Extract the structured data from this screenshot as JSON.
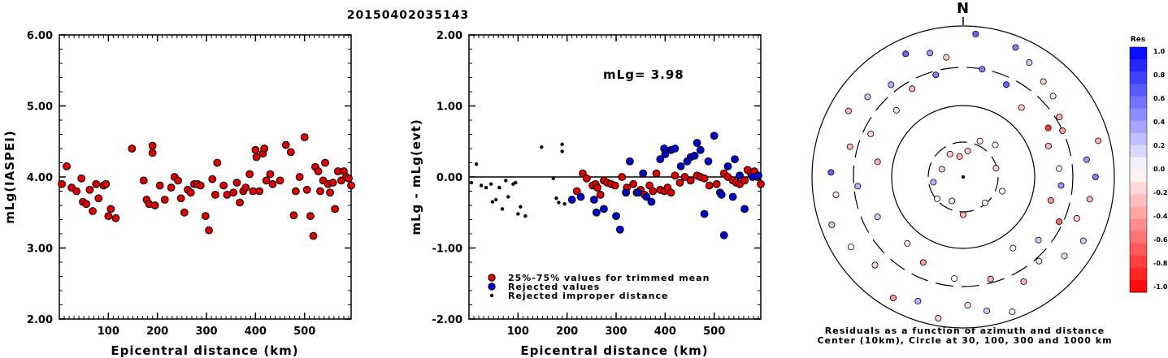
{
  "chart_data": [
    {
      "type": "scatter",
      "title": "20150402035143",
      "xlabel": "Epicentral distance (km)",
      "ylabel": "mLg(IASPEI)",
      "xlim": [
        0,
        595
      ],
      "ylim": [
        2.0,
        6.0
      ],
      "xticks": [
        "100",
        "200",
        "300",
        "400",
        "500"
      ],
      "yticks": [
        "2.00",
        "3.00",
        "4.00",
        "5.00",
        "6.00"
      ],
      "grid": false,
      "series": [
        {
          "color": "#dd0000",
          "points": [
            [
              5,
              3.9
            ],
            [
              15,
              4.15
            ],
            [
              25,
              3.85
            ],
            [
              35,
              3.8
            ],
            [
              45,
              3.98
            ],
            [
              48,
              3.65
            ],
            [
              55,
              3.62
            ],
            [
              62,
              3.82
            ],
            [
              68,
              3.52
            ],
            [
              75,
              3.9
            ],
            [
              80,
              3.7
            ],
            [
              90,
              3.88
            ],
            [
              95,
              3.9
            ],
            [
              100,
              3.45
            ],
            [
              105,
              3.55
            ],
            [
              115,
              3.42
            ],
            [
              148,
              4.4
            ],
            [
              172,
              3.95
            ],
            [
              178,
              3.68
            ],
            [
              183,
              3.62
            ],
            [
              190,
              4.44
            ],
            [
              190,
              4.34
            ],
            [
              195,
              3.6
            ],
            [
              205,
              3.88
            ],
            [
              215,
              3.68
            ],
            [
              228,
              3.85
            ],
            [
              235,
              4.0
            ],
            [
              242,
              3.95
            ],
            [
              248,
              3.7
            ],
            [
              255,
              3.5
            ],
            [
              262,
              3.82
            ],
            [
              268,
              3.78
            ],
            [
              275,
              3.9
            ],
            [
              282,
              3.9
            ],
            [
              288,
              3.88
            ],
            [
              298,
              3.45
            ],
            [
              305,
              3.25
            ],
            [
              312,
              3.97
            ],
            [
              318,
              3.75
            ],
            [
              322,
              4.2
            ],
            [
              335,
              3.88
            ],
            [
              342,
              3.75
            ],
            [
              355,
              3.78
            ],
            [
              362,
              3.92
            ],
            [
              368,
              3.64
            ],
            [
              375,
              3.8
            ],
            [
              380,
              3.85
            ],
            [
              388,
              4.04
            ],
            [
              395,
              3.8
            ],
            [
              400,
              4.38
            ],
            [
              402,
              4.28
            ],
            [
              408,
              3.8
            ],
            [
              415,
              4.33
            ],
            [
              418,
              4.4
            ],
            [
              422,
              3.95
            ],
            [
              430,
              4.04
            ],
            [
              435,
              3.9
            ],
            [
              450,
              3.95
            ],
            [
              462,
              4.45
            ],
            [
              472,
              4.35
            ],
            [
              478,
              3.46
            ],
            [
              482,
              3.8
            ],
            [
              490,
              4.0
            ],
            [
              500,
              4.56
            ],
            [
              505,
              3.82
            ],
            [
              512,
              3.45
            ],
            [
              518,
              3.17
            ],
            [
              522,
              4.14
            ],
            [
              528,
              4.08
            ],
            [
              532,
              3.8
            ],
            [
              538,
              3.95
            ],
            [
              542,
              4.2
            ],
            [
              548,
              3.9
            ],
            [
              552,
              3.78
            ],
            [
              558,
              3.92
            ],
            [
              562,
              3.55
            ],
            [
              568,
              4.08
            ],
            [
              575,
              3.95
            ],
            [
              580,
              4.08
            ],
            [
              585,
              4.0
            ],
            [
              590,
              3.98
            ],
            [
              595,
              3.88
            ]
          ]
        }
      ]
    },
    {
      "type": "scatter",
      "xlabel": "Epicentral distance (km)",
      "ylabel": "mLg - mLg(evt)",
      "annotation": "mLg= 3.98",
      "xlim": [
        0,
        595
      ],
      "ylim": [
        -2.0,
        2.0
      ],
      "xticks": [
        "100",
        "200",
        "300",
        "400",
        "500"
      ],
      "yticks": [
        "-2.00",
        "-1.00",
        "0.00",
        "1.00",
        "2.00"
      ],
      "reference_line": 0.0,
      "grid": false,
      "legend": "bottom-left",
      "series": [
        {
          "name": "25%-75% values for trimmed mean",
          "color": "#dd0000",
          "points": [
            [
              220,
              -0.2
            ],
            [
              232,
              0.05
            ],
            [
              240,
              -0.02
            ],
            [
              252,
              -0.12
            ],
            [
              258,
              -0.1
            ],
            [
              262,
              -0.15
            ],
            [
              268,
              -0.25
            ],
            [
              275,
              -0.05
            ],
            [
              282,
              -0.08
            ],
            [
              290,
              -0.1
            ],
            [
              298,
              -0.12
            ],
            [
              312,
              0.0
            ],
            [
              322,
              -0.15
            ],
            [
              335,
              -0.1
            ],
            [
              342,
              -0.22
            ],
            [
              350,
              -0.18
            ],
            [
              358,
              -0.25
            ],
            [
              368,
              -0.12
            ],
            [
              375,
              -0.2
            ],
            [
              382,
              0.05
            ],
            [
              390,
              -0.18
            ],
            [
              398,
              -0.2
            ],
            [
              405,
              -0.15
            ],
            [
              412,
              -0.22
            ],
            [
              420,
              0.02
            ],
            [
              430,
              -0.08
            ],
            [
              440,
              0.0
            ],
            [
              452,
              -0.05
            ],
            [
              465,
              0.02
            ],
            [
              472,
              0.0
            ],
            [
              480,
              -0.02
            ],
            [
              490,
              -0.12
            ],
            [
              505,
              -0.1
            ],
            [
              520,
              0.05
            ],
            [
              528,
              0.0
            ],
            [
              538,
              -0.05
            ],
            [
              545,
              -0.08
            ],
            [
              552,
              -0.1
            ],
            [
              562,
              -0.05
            ],
            [
              568,
              0.1
            ],
            [
              575,
              0.05
            ],
            [
              582,
              0.08
            ],
            [
              588,
              0.0
            ],
            [
              595,
              -0.1
            ]
          ]
        },
        {
          "name": "Rejected values",
          "color": "#0000cc",
          "points": [
            [
              210,
              -0.32
            ],
            [
              228,
              -0.28
            ],
            [
              255,
              -0.32
            ],
            [
              260,
              -0.5
            ],
            [
              275,
              -0.45
            ],
            [
              300,
              -0.55
            ],
            [
              308,
              -0.74
            ],
            [
              320,
              -0.22
            ],
            [
              328,
              0.22
            ],
            [
              345,
              -0.22
            ],
            [
              355,
              0.05
            ],
            [
              362,
              -0.28
            ],
            [
              372,
              -0.35
            ],
            [
              390,
              0.25
            ],
            [
              398,
              0.4
            ],
            [
              400,
              0.32
            ],
            [
              412,
              0.38
            ],
            [
              420,
              0.4
            ],
            [
              432,
              0.15
            ],
            [
              445,
              0.22
            ],
            [
              452,
              0.28
            ],
            [
              460,
              0.3
            ],
            [
              465,
              0.48
            ],
            [
              472,
              0.38
            ],
            [
              480,
              -0.52
            ],
            [
              488,
              0.22
            ],
            [
              500,
              0.58
            ],
            [
              512,
              -0.22
            ],
            [
              515,
              -0.25
            ],
            [
              520,
              -0.82
            ],
            [
              528,
              0.15
            ],
            [
              538,
              -0.28
            ],
            [
              542,
              0.25
            ],
            [
              552,
              0.02
            ],
            [
              562,
              -0.45
            ],
            [
              578,
              0.0
            ],
            [
              590,
              0.02
            ]
          ]
        },
        {
          "name": "Rejected improper distance",
          "color": "#000000",
          "points": [
            [
              5,
              -0.08
            ],
            [
              15,
              0.18
            ],
            [
              25,
              -0.12
            ],
            [
              35,
              -0.15
            ],
            [
              45,
              -0.1
            ],
            [
              48,
              -0.35
            ],
            [
              55,
              -0.32
            ],
            [
              62,
              -0.15
            ],
            [
              68,
              -0.45
            ],
            [
              75,
              -0.05
            ],
            [
              80,
              -0.28
            ],
            [
              90,
              -0.1
            ],
            [
              95,
              -0.08
            ],
            [
              100,
              -0.52
            ],
            [
              105,
              -0.42
            ],
            [
              115,
              -0.55
            ],
            [
              148,
              0.42
            ],
            [
              172,
              -0.02
            ],
            [
              178,
              -0.3
            ],
            [
              183,
              -0.36
            ],
            [
              190,
              0.46
            ],
            [
              190,
              0.36
            ],
            [
              195,
              -0.38
            ]
          ]
        }
      ]
    },
    {
      "type": "scatter",
      "subtype": "polar",
      "north_label": "N",
      "caption": [
        "Residuals as a function of azimuth and distance",
        "Center (10km), Circle at 30, 100, 300 and 1000 km"
      ],
      "colorbar": {
        "title": "Res",
        "range": [
          -1.0,
          1.0
        ],
        "ticks": [
          "1.0",
          "0.8",
          "0.6",
          "0.4",
          "0.2",
          "0.0",
          "-0.2",
          "-0.4",
          "-0.6",
          "-0.8",
          "-1.0"
        ],
        "positive_color": "#0000ff",
        "negative_color": "#ff0000"
      },
      "points": [
        [
          5,
          380,
          0.6
        ],
        [
          22,
          370,
          0.5
        ],
        [
          30,
          350,
          0.2
        ],
        [
          40,
          330,
          -0.2
        ],
        [
          48,
          320,
          -0.1
        ],
        [
          58,
          300,
          -0.3
        ],
        [
          65,
          290,
          -0.4
        ],
        [
          75,
          370,
          -0.3
        ],
        [
          82,
          330,
          0.4
        ],
        [
          90,
          350,
          0.5
        ],
        [
          100,
          340,
          -0.3
        ],
        [
          110,
          320,
          -0.2
        ],
        [
          118,
          360,
          0.2
        ],
        [
          128,
          340,
          -0.1
        ],
        [
          138,
          300,
          0.1
        ],
        [
          150,
          320,
          -0.3
        ],
        [
          160,
          380,
          0.0
        ],
        [
          170,
          360,
          0.2
        ],
        [
          178,
          340,
          -0.1
        ],
        [
          190,
          380,
          -0.2
        ],
        [
          200,
          350,
          0.3
        ],
        [
          210,
          370,
          -0.4
        ],
        [
          225,
          330,
          -0.2
        ],
        [
          238,
          350,
          0.0
        ],
        [
          250,
          370,
          0.2
        ],
        [
          262,
          340,
          -0.1
        ],
        [
          272,
          350,
          0.6
        ],
        [
          285,
          310,
          -0.3
        ],
        [
          300,
          350,
          -0.3
        ],
        [
          310,
          330,
          0.2
        ],
        [
          322,
          310,
          0.3
        ],
        [
          335,
          360,
          0.6
        ],
        [
          345,
          340,
          0.4
        ],
        [
          352,
          320,
          -0.2
        ],
        [
          10,
          290,
          0.5
        ],
        [
          25,
          270,
          0.6
        ],
        [
          40,
          240,
          -0.2
        ],
        [
          60,
          260,
          -0.8
        ],
        [
          70,
          240,
          -0.3
        ],
        [
          85,
          255,
          0.0
        ],
        [
          95,
          260,
          0.4
        ],
        [
          105,
          240,
          -0.4
        ],
        [
          115,
          280,
          -0.6
        ],
        [
          130,
          260,
          0.2
        ],
        [
          145,
          230,
          0.0
        ],
        [
          165,
          280,
          -0.3
        ],
        [
          185,
          270,
          0.0
        ],
        [
          205,
          250,
          -0.4
        ],
        [
          220,
          230,
          -0.1
        ],
        [
          245,
          250,
          0.2
        ],
        [
          265,
          280,
          0.3
        ],
        [
          280,
          230,
          -0.3
        ],
        [
          295,
          270,
          -0.2
        ],
        [
          315,
          250,
          0.1
        ],
        [
          330,
          270,
          -0.3
        ],
        [
          345,
          280,
          0.5
        ],
        [
          10,
          70,
          -0.2
        ],
        [
          25,
          105,
          -0.1
        ],
        [
          45,
          120,
          0.0
        ],
        [
          75,
          90,
          -0.2
        ],
        [
          110,
          110,
          0.0
        ],
        [
          140,
          90,
          0.0
        ],
        [
          180,
          100,
          -0.3
        ],
        [
          205,
          70,
          0.1
        ],
        [
          230,
          90,
          0.0
        ],
        [
          260,
          80,
          0.3
        ],
        [
          290,
          60,
          -0.2
        ],
        [
          330,
          70,
          -0.2
        ],
        [
          350,
          55,
          -0.3
        ]
      ]
    }
  ]
}
